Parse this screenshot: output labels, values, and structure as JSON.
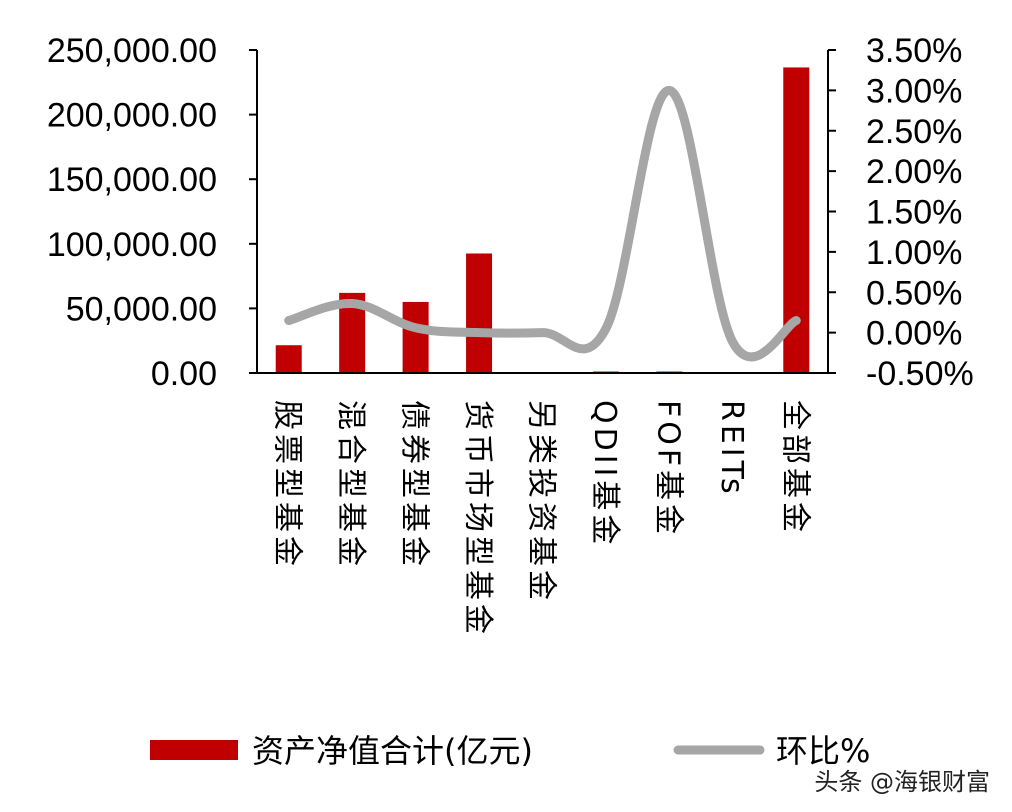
{
  "chart_data": {
    "type": "bar",
    "title": "",
    "categories": [
      "股票型基金",
      "混合型基金",
      "债券型基金",
      "货币市场型基金",
      "另类投资基金",
      "QDII基金",
      "FOF基金",
      "REITs",
      "全部基金"
    ],
    "series": [
      {
        "name": "资产净值合计(亿元)",
        "type": "bar",
        "axis": "left",
        "color": "#C00000",
        "values": [
          21500,
          62000,
          55000,
          92500,
          0,
          1000,
          1000,
          0,
          236500
        ]
      },
      {
        "name": "环比%",
        "type": "line",
        "axis": "right",
        "color": "#A6A6A6",
        "values": [
          0.15,
          0.36,
          0.06,
          0.0,
          0.0,
          0.05,
          3.0,
          -0.12,
          0.15
        ]
      }
    ],
    "y_left": {
      "min": 0,
      "max": 250000,
      "ticks": [
        0,
        50000,
        100000,
        150000,
        200000,
        250000
      ],
      "tick_labels": [
        "0.00",
        "50,000.00",
        "100,000.00",
        "150,000.00",
        "200,000.00",
        "250,000.00"
      ]
    },
    "y_right": {
      "min": -0.5,
      "max": 3.5,
      "ticks": [
        -0.5,
        0.0,
        0.5,
        1.0,
        1.5,
        2.0,
        2.5,
        3.0,
        3.5
      ],
      "tick_labels": [
        "-0.50%",
        "0.00%",
        "0.50%",
        "1.00%",
        "1.50%",
        "2.00%",
        "2.50%",
        "3.00%",
        "3.50%"
      ]
    },
    "grid": false,
    "legend_position": "bottom",
    "xlabel": "",
    "ylabel": ""
  },
  "watermark": "头条 @海银财富"
}
